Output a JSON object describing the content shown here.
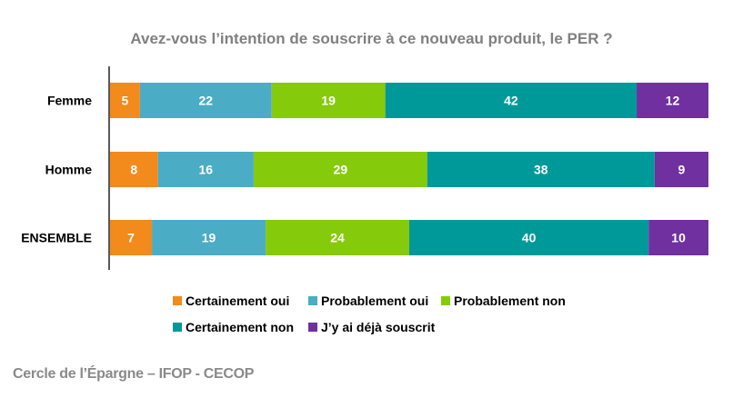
{
  "chart_data": {
    "type": "bar",
    "orientation": "horizontal",
    "stacked": true,
    "title": "Avez-vous l’intention de souscrire à ce nouveau produit, le PER ?",
    "categories": [
      "Femme",
      "Homme",
      "ENSEMBLE"
    ],
    "series": [
      {
        "name": "Certainement oui",
        "color": "#f28a1c",
        "values": [
          5,
          8,
          7
        ]
      },
      {
        "name": "Probablement oui",
        "color": "#4bacc6",
        "values": [
          22,
          16,
          19
        ]
      },
      {
        "name": "Probablement non",
        "color": "#86ca0c",
        "values": [
          19,
          29,
          24
        ]
      },
      {
        "name": "Certainement non",
        "color": "#009999",
        "values": [
          42,
          38,
          40
        ]
      },
      {
        "name": "J’y ai déjà souscrit",
        "color": "#7030a0",
        "values": [
          12,
          9,
          10
        ]
      }
    ],
    "xlim": [
      0,
      100
    ],
    "grid": false,
    "legend_position": "bottom"
  },
  "source": "Cercle de l’Épargne – IFOP - CECOP"
}
